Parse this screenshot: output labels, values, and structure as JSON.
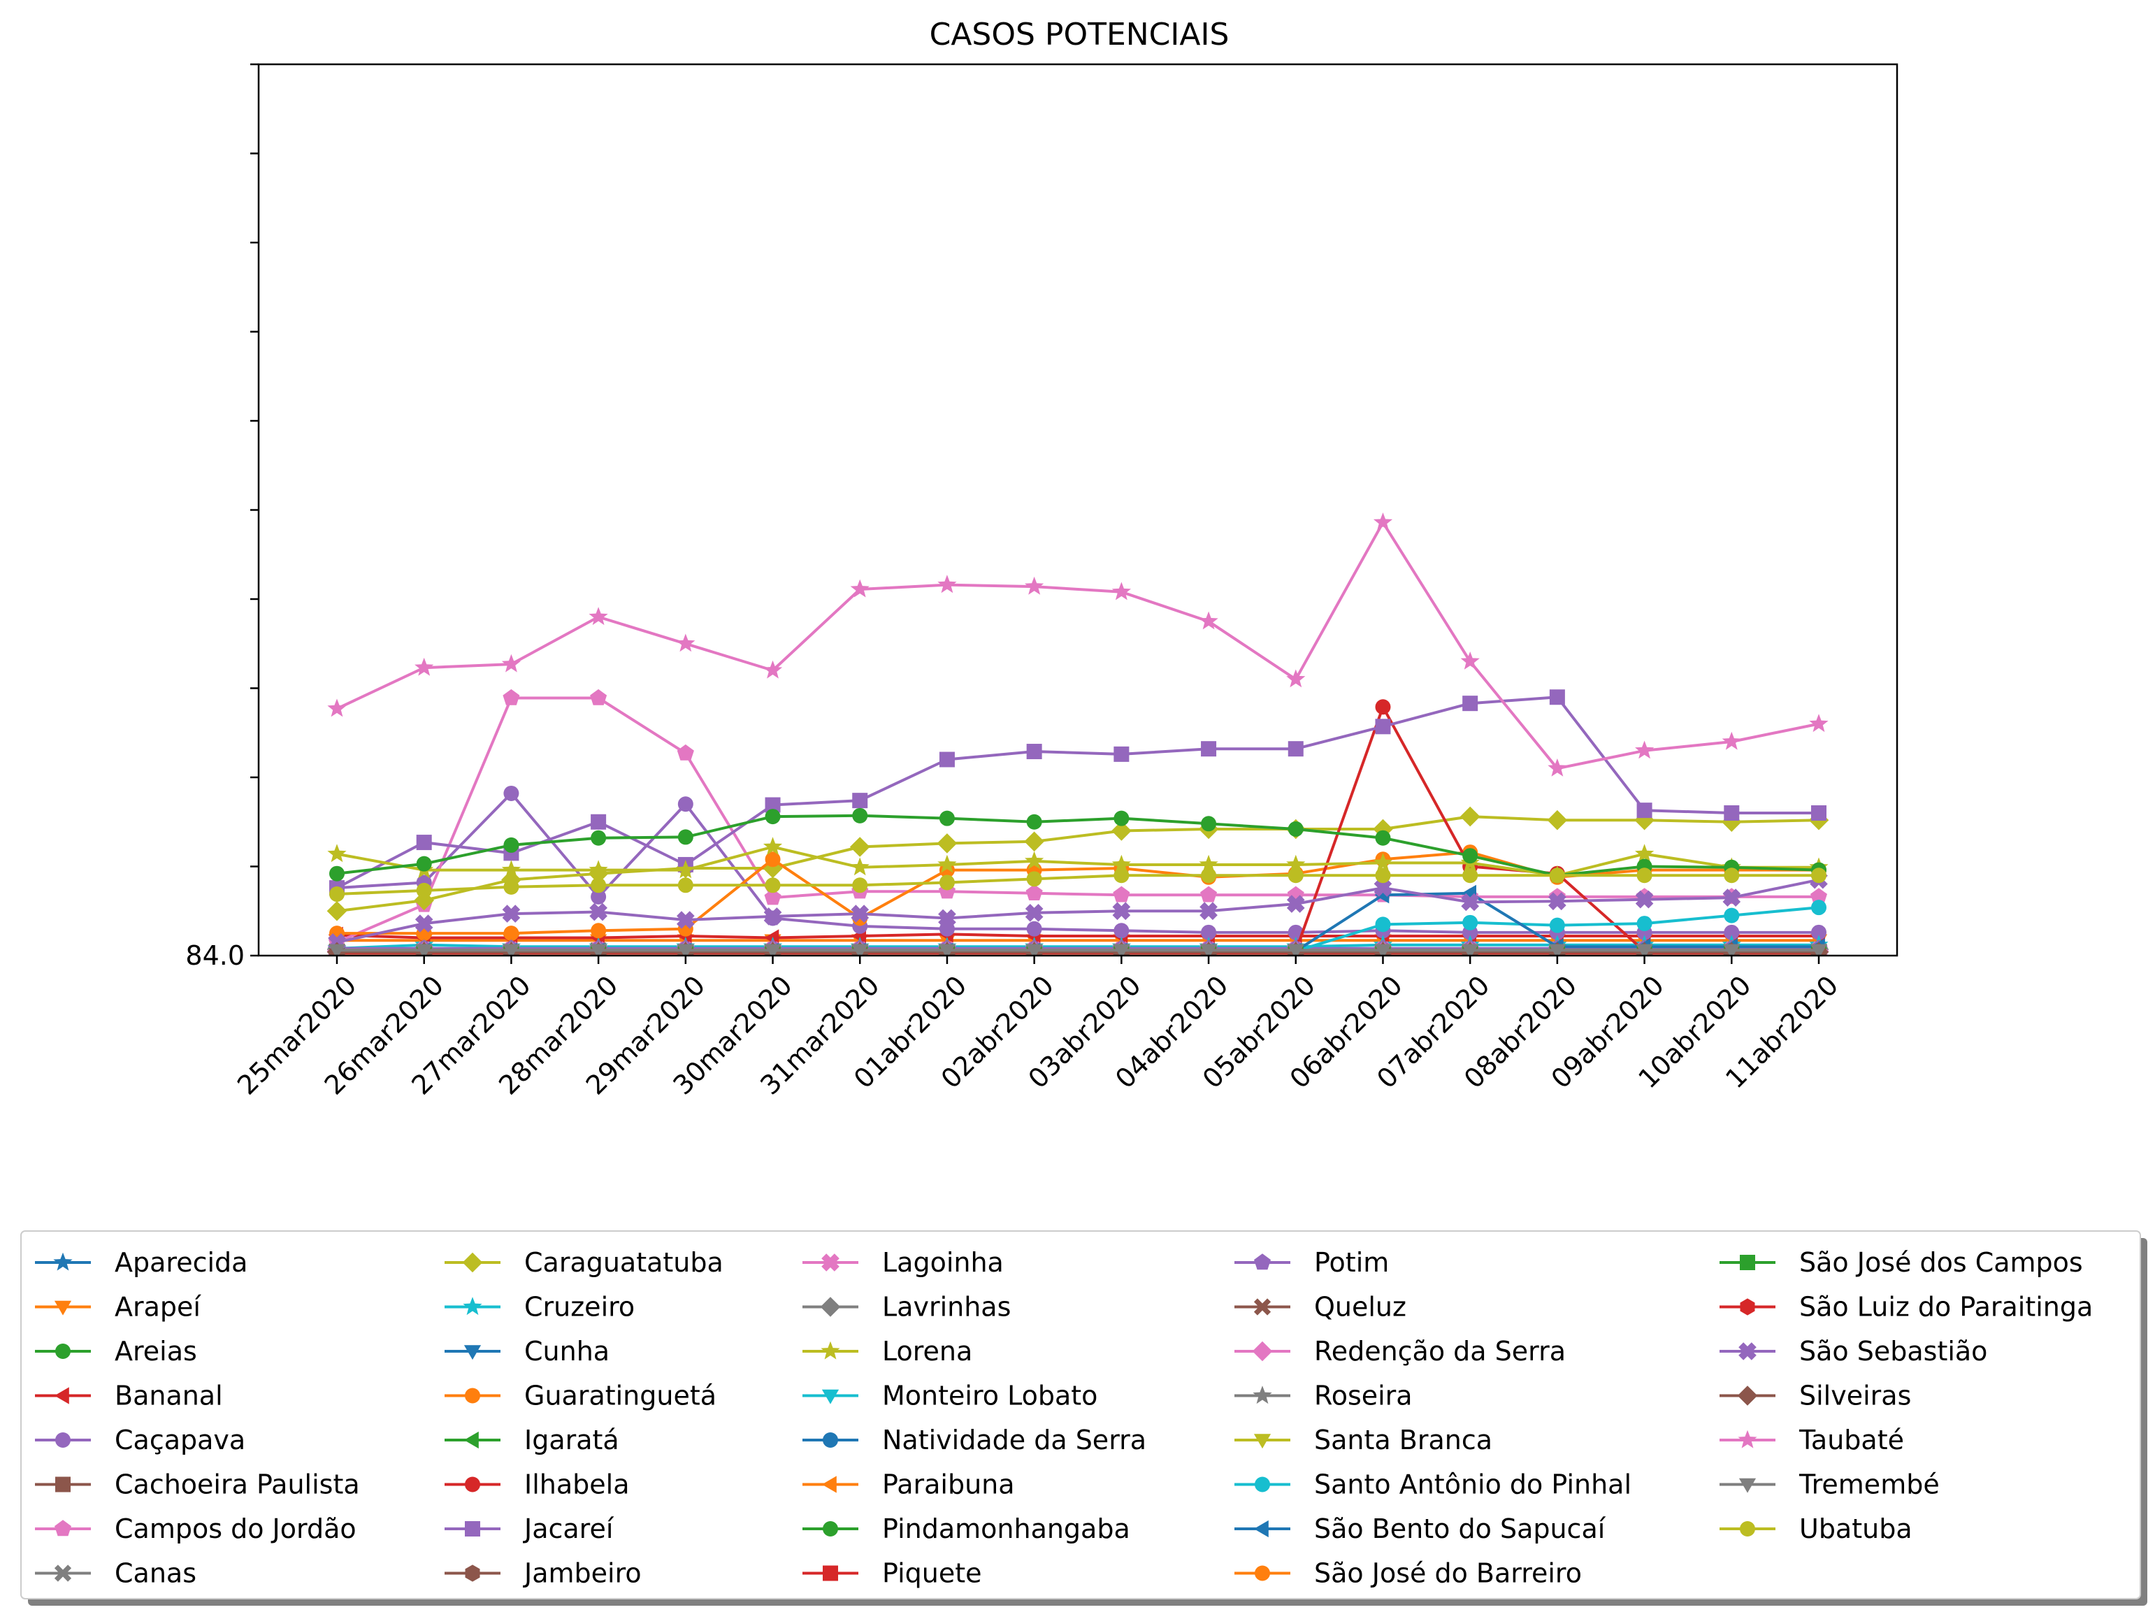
{
  "chart_data": {
    "type": "line",
    "title": "CASOS POTENCIAIS",
    "xlabel": "",
    "ylabel": "",
    "x": [
      "25mar2020",
      "26mar2020",
      "27mar2020",
      "28mar2020",
      "29mar2020",
      "30mar2020",
      "31mar2020",
      "01abr2020",
      "02abr2020",
      "03abr2020",
      "04abr2020",
      "05abr2020",
      "06abr2020",
      "07abr2020",
      "08abr2020",
      "09abr2020",
      "10abr2020",
      "11abr2020"
    ],
    "ylim": [
      84.0,
      184.0
    ],
    "y_tick_labels": [
      "84.0",
      "",
      "",
      "",
      "",
      "",
      "",
      "",
      "",
      "",
      ""
    ],
    "grid": false,
    "legend_position": "bottom",
    "legend_columns": 5,
    "series": [
      {
        "name": "Aparecida",
        "color": "#1f77b4",
        "marker": "star",
        "values": [
          84.5,
          84.6,
          84.5,
          84.5,
          84.4,
          84.4,
          84.4,
          84.4,
          84.3,
          84.3,
          84.3,
          84.4,
          84.5,
          84.5,
          84.5,
          84.6,
          84.5,
          84.5
        ]
      },
      {
        "name": "Arapeí",
        "color": "#ff7f0e",
        "marker": "triangle-down",
        "values": [
          85.7,
          85.7,
          85.7,
          85.7,
          85.7,
          85.7,
          85.7,
          85.7,
          85.7,
          85.7,
          85.7,
          85.7,
          85.7,
          85.7,
          85.7,
          85.7,
          85.7,
          85.7
        ]
      },
      {
        "name": "Areias",
        "color": "#2ca02c",
        "marker": "circle",
        "values": [
          84.3,
          84.3,
          84.3,
          84.3,
          84.3,
          84.4,
          84.5,
          84.6,
          84.6,
          84.5,
          84.5,
          84.4,
          84.4,
          84.5,
          84.5,
          84.4,
          84.3,
          84.3
        ]
      },
      {
        "name": "Bananal",
        "color": "#d62728",
        "marker": "triangle-left",
        "values": [
          86.3,
          86.0,
          86.0,
          86.0,
          86.2,
          86.0,
          86.2,
          86.4,
          86.2,
          86.2,
          86.2,
          86.2,
          86.2,
          86.2,
          86.2,
          86.2,
          86.2,
          86.2
        ]
      },
      {
        "name": "Caçapava",
        "color": "#9467bd",
        "marker": "circle",
        "values": [
          91.6,
          92.2,
          102.2,
          90.6,
          101.0,
          88.2,
          87.3,
          87.0,
          87.0,
          86.8,
          86.6,
          86.6,
          86.8,
          86.6,
          86.6,
          86.6,
          86.6,
          86.6
        ]
      },
      {
        "name": "Cachoeira Paulista",
        "color": "#8c564b",
        "marker": "square",
        "values": [
          84.5,
          84.5,
          84.5,
          84.6,
          84.5,
          84.5,
          84.5,
          84.5,
          84.5,
          84.5,
          84.5,
          84.5,
          84.6,
          84.6,
          84.6,
          84.6,
          84.6,
          84.6
        ]
      },
      {
        "name": "Campos do Jordão",
        "color": "#e377c2",
        "marker": "pentagon",
        "values": [
          85.5,
          89.7,
          112.9,
          112.9,
          106.7,
          90.5,
          91.2,
          91.2,
          91.0,
          90.8,
          90.8,
          90.8,
          90.8,
          90.6,
          90.6,
          90.6,
          90.6,
          90.6
        ]
      },
      {
        "name": "Canas",
        "color": "#7f7f7f",
        "marker": "x",
        "values": [
          84.4,
          84.4,
          84.4,
          84.4,
          84.4,
          84.4,
          84.4,
          84.4,
          84.4,
          84.4,
          84.4,
          84.4,
          84.5,
          84.5,
          84.5,
          84.5,
          84.5,
          84.5
        ]
      },
      {
        "name": "Caraguatatuba",
        "color": "#bcbd22",
        "marker": "diamond",
        "values": [
          89.0,
          90.2,
          92.5,
          93.2,
          93.8,
          93.8,
          96.2,
          96.6,
          96.8,
          98.0,
          98.2,
          98.2,
          98.2,
          99.6,
          99.2,
          99.2,
          99.0,
          99.2
        ]
      },
      {
        "name": "Cruzeiro",
        "color": "#17becf",
        "marker": "star",
        "values": [
          84.8,
          85.2,
          85.0,
          85.0,
          85.0,
          85.0,
          85.0,
          85.0,
          85.0,
          85.0,
          85.0,
          85.0,
          85.2,
          85.2,
          85.2,
          85.2,
          85.2,
          85.2
        ]
      },
      {
        "name": "Cunha",
        "color": "#1f77b4",
        "marker": "triangle-down",
        "values": [
          84.5,
          84.5,
          84.5,
          84.5,
          84.5,
          84.5,
          84.5,
          84.5,
          84.5,
          84.5,
          84.5,
          84.5,
          84.5,
          84.5,
          84.5,
          84.5,
          84.5,
          84.5
        ]
      },
      {
        "name": "Guaratinguetá",
        "color": "#ff7f0e",
        "marker": "circle",
        "values": [
          86.5,
          86.5,
          86.5,
          86.8,
          87.0,
          94.8,
          88.2,
          93.6,
          93.6,
          93.8,
          92.8,
          93.2,
          94.8,
          95.6,
          92.8,
          93.6,
          93.6,
          93.6
        ]
      },
      {
        "name": "Igaratá",
        "color": "#2ca02c",
        "marker": "triangle-left",
        "values": [
          84.3,
          84.3,
          84.3,
          84.3,
          84.3,
          84.3,
          84.3,
          84.3,
          84.3,
          84.3,
          84.3,
          84.3,
          84.3,
          84.3,
          84.3,
          84.3,
          84.3,
          84.3
        ]
      },
      {
        "name": "Ilhabela",
        "color": "#d62728",
        "marker": "circle",
        "values": [
          84.5,
          84.5,
          84.5,
          84.5,
          84.5,
          84.5,
          84.5,
          84.5,
          84.5,
          84.5,
          84.5,
          84.5,
          111.9,
          94.0,
          93.2,
          84.5,
          84.5,
          84.5
        ]
      },
      {
        "name": "Jacareí",
        "color": "#9467bd",
        "marker": "square",
        "values": [
          91.6,
          96.7,
          95.5,
          99.0,
          94.2,
          100.9,
          101.4,
          106.0,
          106.9,
          106.6,
          107.2,
          107.2,
          109.7,
          112.3,
          113.0,
          100.3,
          100.0,
          100.0
        ]
      },
      {
        "name": "Jambeiro",
        "color": "#8c564b",
        "marker": "hexagon",
        "values": [
          84.3,
          84.3,
          84.3,
          84.3,
          84.3,
          84.3,
          84.3,
          84.3,
          84.3,
          84.3,
          84.3,
          84.3,
          84.4,
          84.4,
          84.4,
          84.4,
          84.4,
          84.4
        ]
      },
      {
        "name": "Lagoinha",
        "color": "#e377c2",
        "marker": "plus",
        "values": [
          84.6,
          84.6,
          84.6,
          84.6,
          84.6,
          84.6,
          84.6,
          84.6,
          84.6,
          84.6,
          84.6,
          84.6,
          84.6,
          84.6,
          84.6,
          84.6,
          84.6,
          84.6
        ]
      },
      {
        "name": "Lavrinhas",
        "color": "#7f7f7f",
        "marker": "diamond",
        "values": [
          84.7,
          84.7,
          84.7,
          84.7,
          84.7,
          84.7,
          84.7,
          84.7,
          84.7,
          84.7,
          84.7,
          84.7,
          84.7,
          84.7,
          84.7,
          84.7,
          84.7,
          84.7
        ]
      },
      {
        "name": "Lorena",
        "color": "#bcbd22",
        "marker": "star",
        "values": [
          95.4,
          93.6,
          93.6,
          93.6,
          93.6,
          96.2,
          93.9,
          94.2,
          94.6,
          94.2,
          94.2,
          94.2,
          94.4,
          94.4,
          93.0,
          95.4,
          93.9,
          93.9
        ]
      },
      {
        "name": "Monteiro Lobato",
        "color": "#17becf",
        "marker": "triangle-down",
        "values": [
          84.6,
          84.6,
          84.6,
          84.6,
          84.6,
          84.6,
          84.6,
          84.6,
          84.6,
          84.6,
          84.6,
          84.6,
          84.6,
          84.6,
          84.6,
          84.6,
          84.6,
          84.6
        ]
      },
      {
        "name": "Natividade da Serra",
        "color": "#1f77b4",
        "marker": "circle",
        "values": [
          84.4,
          84.4,
          84.4,
          84.4,
          84.4,
          84.4,
          84.4,
          84.4,
          84.4,
          84.4,
          84.4,
          84.4,
          84.4,
          84.4,
          84.4,
          84.4,
          84.4,
          84.4
        ]
      },
      {
        "name": "Paraibuna",
        "color": "#ff7f0e",
        "marker": "triangle-left",
        "values": [
          84.3,
          84.3,
          84.3,
          84.3,
          84.3,
          84.3,
          84.3,
          84.3,
          84.3,
          84.3,
          84.3,
          84.3,
          84.3,
          84.3,
          84.3,
          84.3,
          84.3,
          84.3
        ]
      },
      {
        "name": "Pindamonhangaba",
        "color": "#2ca02c",
        "marker": "circle",
        "values": [
          93.2,
          94.3,
          96.4,
          97.2,
          97.3,
          99.6,
          99.7,
          99.4,
          99.0,
          99.4,
          98.8,
          98.2,
          97.2,
          95.2,
          93.0,
          94.0,
          93.9,
          93.6
        ]
      },
      {
        "name": "Piquete",
        "color": "#d62728",
        "marker": "square",
        "values": [
          84.3,
          84.3,
          84.3,
          84.3,
          84.3,
          84.3,
          84.3,
          84.3,
          84.3,
          84.3,
          84.3,
          84.3,
          84.3,
          84.3,
          84.3,
          84.3,
          84.3,
          84.3
        ]
      },
      {
        "name": "Potim",
        "color": "#9467bd",
        "marker": "pentagon",
        "values": [
          84.8,
          84.8,
          84.8,
          84.8,
          84.8,
          84.8,
          84.8,
          84.8,
          84.8,
          84.8,
          84.8,
          84.8,
          84.8,
          84.8,
          84.8,
          84.8,
          84.8,
          84.8
        ]
      },
      {
        "name": "Queluz",
        "color": "#8c564b",
        "marker": "x",
        "values": [
          84.3,
          84.3,
          84.3,
          84.3,
          84.3,
          84.3,
          84.3,
          84.3,
          84.3,
          84.3,
          84.3,
          84.3,
          84.3,
          84.3,
          84.3,
          84.3,
          84.3,
          84.3
        ]
      },
      {
        "name": "Redenção da Serra",
        "color": "#e377c2",
        "marker": "diamond",
        "values": [
          84.5,
          84.5,
          84.5,
          84.5,
          84.5,
          84.5,
          84.5,
          84.5,
          84.5,
          84.5,
          84.5,
          84.5,
          84.5,
          84.5,
          84.5,
          84.5,
          84.5,
          84.5
        ]
      },
      {
        "name": "Roseira",
        "color": "#7f7f7f",
        "marker": "star",
        "values": [
          84.6,
          84.6,
          84.6,
          84.6,
          84.6,
          84.6,
          84.6,
          84.6,
          84.6,
          84.6,
          84.6,
          84.6,
          84.6,
          84.6,
          84.6,
          84.6,
          84.6,
          84.6
        ]
      },
      {
        "name": "Santa Branca",
        "color": "#bcbd22",
        "marker": "triangle-down",
        "values": [
          84.6,
          84.6,
          84.6,
          84.6,
          84.6,
          84.6,
          84.6,
          84.6,
          84.6,
          84.6,
          84.6,
          84.6,
          84.6,
          84.6,
          84.6,
          84.6,
          84.6,
          84.6
        ]
      },
      {
        "name": "Santo Antônio do Pinhal",
        "color": "#17becf",
        "marker": "circle",
        "values": [
          84.5,
          84.5,
          84.5,
          84.5,
          84.5,
          84.5,
          84.5,
          84.5,
          84.5,
          84.5,
          84.5,
          84.5,
          87.5,
          87.7,
          87.4,
          87.6,
          88.5,
          89.4
        ]
      },
      {
        "name": "São Bento do Sapucaí",
        "color": "#1f77b4",
        "marker": "triangle-left",
        "values": [
          84.5,
          84.5,
          84.5,
          84.5,
          84.5,
          84.5,
          84.5,
          84.5,
          84.5,
          84.5,
          84.5,
          84.5,
          90.8,
          91.0,
          85.0,
          85.0,
          85.0,
          85.0
        ]
      },
      {
        "name": "São José do Barreiro",
        "color": "#ff7f0e",
        "marker": "circle",
        "values": [
          84.3,
          84.3,
          84.3,
          84.3,
          84.3,
          84.3,
          84.3,
          84.3,
          84.3,
          84.3,
          84.3,
          84.3,
          84.3,
          84.3,
          84.3,
          84.3,
          84.3,
          84.3
        ]
      },
      {
        "name": "São José dos Campos",
        "color": "#2ca02c",
        "marker": "square",
        "values": [
          84.4,
          84.4,
          84.4,
          84.4,
          84.4,
          84.4,
          84.4,
          84.4,
          84.4,
          84.4,
          84.4,
          84.4,
          84.4,
          84.4,
          84.4,
          84.4,
          84.4,
          84.4
        ]
      },
      {
        "name": "São Luiz do Paraitinga",
        "color": "#d62728",
        "marker": "hexagon",
        "values": [
          84.3,
          84.3,
          84.3,
          84.3,
          84.3,
          84.3,
          84.3,
          84.3,
          84.3,
          84.3,
          84.3,
          84.3,
          84.3,
          84.3,
          84.3,
          84.3,
          84.3,
          84.3
        ]
      },
      {
        "name": "São Sebastião",
        "color": "#9467bd",
        "marker": "plus",
        "values": [
          85.5,
          87.6,
          88.7,
          88.9,
          88.0,
          88.4,
          88.7,
          88.2,
          88.8,
          89.0,
          89.0,
          89.8,
          91.6,
          90.0,
          90.1,
          90.3,
          90.5,
          92.5
        ]
      },
      {
        "name": "Silveiras",
        "color": "#8c564b",
        "marker": "diamond",
        "values": [
          84.4,
          84.4,
          84.4,
          84.4,
          84.4,
          84.4,
          84.4,
          84.4,
          84.4,
          84.4,
          84.4,
          84.4,
          84.4,
          84.4,
          84.4,
          84.4,
          84.4,
          84.4
        ]
      },
      {
        "name": "Taubaté",
        "color": "#e377c2",
        "marker": "star",
        "values": [
          111.7,
          116.3,
          116.7,
          122.0,
          119.0,
          116.0,
          125.1,
          125.6,
          125.4,
          124.8,
          121.5,
          115.0,
          132.6,
          117.0,
          105.0,
          107.0,
          108.0,
          110.0
        ]
      },
      {
        "name": "Tremembé",
        "color": "#7f7f7f",
        "marker": "triangle-down",
        "values": [
          84.6,
          84.6,
          84.6,
          84.6,
          84.6,
          84.6,
          84.6,
          84.6,
          84.6,
          84.6,
          84.6,
          84.6,
          84.6,
          84.6,
          84.6,
          84.6,
          84.6,
          84.6
        ]
      },
      {
        "name": "Ubatuba",
        "color": "#bcbd22",
        "marker": "circle",
        "values": [
          90.9,
          91.3,
          91.7,
          91.9,
          91.9,
          91.9,
          91.9,
          92.2,
          92.6,
          93.0,
          93.0,
          93.0,
          93.0,
          93.0,
          93.0,
          93.0,
          93.0,
          93.0
        ]
      }
    ]
  }
}
